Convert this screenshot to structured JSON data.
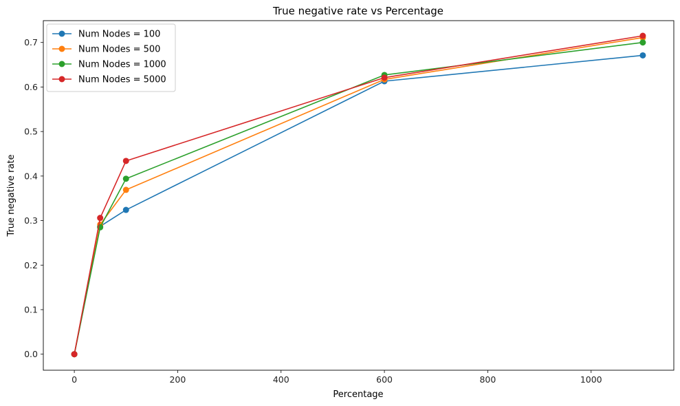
{
  "chart_data": {
    "type": "line",
    "title": "True negative rate vs Percentage",
    "xlabel": "Percentage",
    "ylabel": "True negative rate",
    "xlim": [
      -60,
      1160
    ],
    "ylim": [
      -0.036,
      0.749
    ],
    "xticks": [
      0,
      200,
      400,
      600,
      800,
      1000
    ],
    "yticks": [
      0.0,
      0.1,
      0.2,
      0.3,
      0.4,
      0.5,
      0.6,
      0.7
    ],
    "grid": false,
    "legend_position": "top-left",
    "x": [
      0,
      50,
      100,
      600,
      1100
    ],
    "series": [
      {
        "name": "Num Nodes = 100",
        "color": "#1f77b4",
        "values": [
          0.0,
          0.287,
          0.324,
          0.613,
          0.671
        ]
      },
      {
        "name": "Num Nodes = 500",
        "color": "#ff7f0e",
        "values": [
          0.0,
          0.291,
          0.369,
          0.617,
          0.711
        ]
      },
      {
        "name": "Num Nodes = 1000",
        "color": "#2ca02c",
        "values": [
          0.0,
          0.285,
          0.394,
          0.627,
          0.7
        ]
      },
      {
        "name": "Num Nodes = 5000",
        "color": "#d62728",
        "values": [
          0.0,
          0.306,
          0.434,
          0.621,
          0.715
        ]
      }
    ]
  }
}
